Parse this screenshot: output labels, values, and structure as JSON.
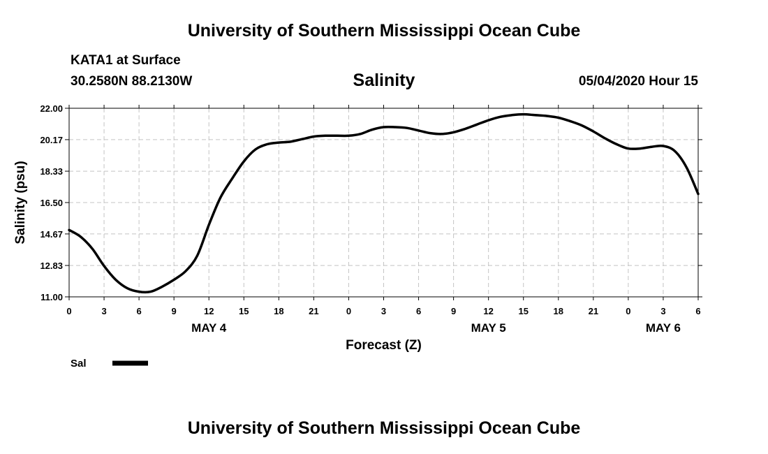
{
  "header": {
    "title": "University of Southern Mississippi Ocean Cube",
    "station": "KATA1 at Surface",
    "coords": "30.2580N 88.2130W",
    "timestamp": "05/04/2020 Hour 15"
  },
  "footer": {
    "title": "University of Southern Mississippi Ocean Cube"
  },
  "chart_data": {
    "type": "line",
    "title": "Salinity",
    "xlabel": "Forecast (Z)",
    "ylabel": "Salinity (psu)",
    "ylim": [
      11.0,
      22.0
    ],
    "xlim": [
      0,
      54
    ],
    "x_unit": "hours since 05/04/2020 00Z",
    "ytick_labels": [
      "22.00",
      "20.17",
      "18.33",
      "16.50",
      "14.67",
      "12.83",
      "11.00"
    ],
    "ytick_values": [
      22.0,
      20.17,
      18.33,
      16.5,
      14.67,
      12.83,
      11.0
    ],
    "xtick_labels": [
      "0",
      "3",
      "6",
      "9",
      "12",
      "15",
      "18",
      "21",
      "0",
      "3",
      "6",
      "9",
      "12",
      "15",
      "18",
      "21",
      "0",
      "3",
      "6"
    ],
    "xtick_values": [
      0,
      3,
      6,
      9,
      12,
      15,
      18,
      21,
      24,
      27,
      30,
      33,
      36,
      39,
      42,
      45,
      48,
      51,
      54
    ],
    "date_labels": [
      {
        "label": "MAY 4",
        "x": 12
      },
      {
        "label": "MAY 5",
        "x": 36
      },
      {
        "label": "MAY 6",
        "x": 51
      }
    ],
    "grid": true,
    "legend": {
      "position": "bottom-left",
      "entries": [
        {
          "name": "Sal"
        }
      ]
    },
    "series": [
      {
        "name": "Sal",
        "color": "#000000",
        "x": [
          0,
          1,
          2,
          3,
          4,
          5,
          6,
          7,
          8,
          9,
          10,
          11,
          12,
          13,
          14,
          15,
          16,
          17,
          18,
          19,
          20,
          21,
          22,
          23,
          24,
          25,
          26,
          27,
          28,
          29,
          30,
          31,
          32,
          33,
          34,
          35,
          36,
          37,
          38,
          39,
          40,
          41,
          42,
          43,
          44,
          45,
          46,
          47,
          48,
          49,
          50,
          51,
          52,
          53,
          54
        ],
        "values": [
          14.9,
          14.5,
          13.8,
          12.8,
          12.0,
          11.5,
          11.3,
          11.3,
          11.6,
          12.0,
          12.5,
          13.4,
          15.2,
          16.8,
          17.9,
          18.9,
          19.6,
          19.9,
          20.0,
          20.05,
          20.2,
          20.35,
          20.4,
          20.4,
          20.4,
          20.5,
          20.75,
          20.9,
          20.9,
          20.85,
          20.7,
          20.55,
          20.5,
          20.6,
          20.8,
          21.05,
          21.3,
          21.5,
          21.6,
          21.65,
          21.6,
          21.55,
          21.45,
          21.25,
          21.0,
          20.65,
          20.25,
          19.9,
          19.65,
          19.65,
          19.75,
          19.8,
          19.5,
          18.55,
          17.0
        ]
      }
    ]
  }
}
